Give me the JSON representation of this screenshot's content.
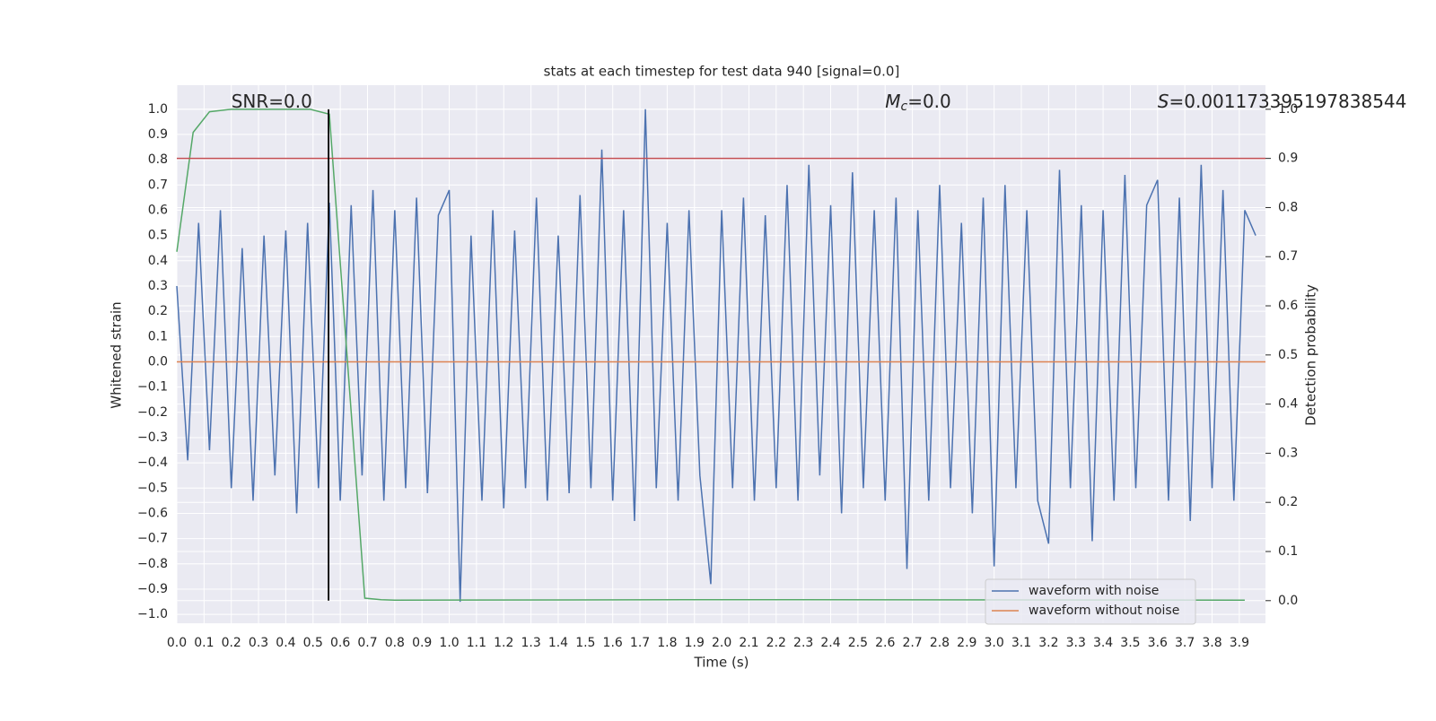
{
  "chart_data": {
    "type": "line",
    "title": "stats at each timestep for test data 940 [signal=0.0]",
    "xlabel": "Time (s)",
    "ylabel": "Whitened strain",
    "y2label": "Detection probability",
    "xlim": [
      0,
      3.996
    ],
    "ylim": [
      -1.035,
      1.095
    ],
    "y2lim": [
      -0.046,
      1.049
    ],
    "grid": true,
    "legend": "lower right",
    "xticks": [
      {
        "value": 0,
        "label": "0.0"
      },
      {
        "value": 0.1,
        "label": "0.1"
      },
      {
        "value": 0.2,
        "label": "0.2"
      },
      {
        "value": 0.3,
        "label": "0.3"
      },
      {
        "value": 0.4,
        "label": "0.4"
      },
      {
        "value": 0.5,
        "label": "0.5"
      },
      {
        "value": 0.6,
        "label": "0.6"
      },
      {
        "value": 0.7,
        "label": "0.7"
      },
      {
        "value": 0.8,
        "label": "0.8"
      },
      {
        "value": 0.9,
        "label": "0.9"
      },
      {
        "value": 1,
        "label": "1.0"
      },
      {
        "value": 1.1,
        "label": "1.1"
      },
      {
        "value": 1.2,
        "label": "1.2"
      },
      {
        "value": 1.3,
        "label": "1.3"
      },
      {
        "value": 1.4,
        "label": "1.4"
      },
      {
        "value": 1.5,
        "label": "1.5"
      },
      {
        "value": 1.6,
        "label": "1.6"
      },
      {
        "value": 1.7,
        "label": "1.7"
      },
      {
        "value": 1.8,
        "label": "1.8"
      },
      {
        "value": 1.9,
        "label": "1.9"
      },
      {
        "value": 2,
        "label": "2.0"
      },
      {
        "value": 2.1,
        "label": "2.1"
      },
      {
        "value": 2.2,
        "label": "2.2"
      },
      {
        "value": 2.3,
        "label": "2.3"
      },
      {
        "value": 2.4,
        "label": "2.4"
      },
      {
        "value": 2.5,
        "label": "2.5"
      },
      {
        "value": 2.6,
        "label": "2.6"
      },
      {
        "value": 2.7,
        "label": "2.7"
      },
      {
        "value": 2.8,
        "label": "2.8"
      },
      {
        "value": 2.9,
        "label": "2.9"
      },
      {
        "value": 3,
        "label": "3.0"
      },
      {
        "value": 3.1,
        "label": "3.1"
      },
      {
        "value": 3.2,
        "label": "3.2"
      },
      {
        "value": 3.3,
        "label": "3.3"
      },
      {
        "value": 3.4,
        "label": "3.4"
      },
      {
        "value": 3.5,
        "label": "3.5"
      },
      {
        "value": 3.6,
        "label": "3.6"
      },
      {
        "value": 3.7,
        "label": "3.7"
      },
      {
        "value": 3.8,
        "label": "3.8"
      },
      {
        "value": 3.9,
        "label": "3.9"
      }
    ],
    "yticks": [
      {
        "value": -1,
        "label": "−1.0"
      },
      {
        "value": -0.9,
        "label": "−0.9"
      },
      {
        "value": -0.8,
        "label": "−0.8"
      },
      {
        "value": -0.7,
        "label": "−0.7"
      },
      {
        "value": -0.6,
        "label": "−0.6"
      },
      {
        "value": -0.5,
        "label": "−0.5"
      },
      {
        "value": -0.4,
        "label": "−0.4"
      },
      {
        "value": -0.3,
        "label": "−0.3"
      },
      {
        "value": -0.2,
        "label": "−0.2"
      },
      {
        "value": -0.1,
        "label": "−0.1"
      },
      {
        "value": 0,
        "label": "0.0"
      },
      {
        "value": 0.1,
        "label": "0.1"
      },
      {
        "value": 0.2,
        "label": "0.2"
      },
      {
        "value": 0.3,
        "label": "0.3"
      },
      {
        "value": 0.4,
        "label": "0.4"
      },
      {
        "value": 0.5,
        "label": "0.5"
      },
      {
        "value": 0.6,
        "label": "0.6"
      },
      {
        "value": 0.7,
        "label": "0.7"
      },
      {
        "value": 0.8,
        "label": "0.8"
      },
      {
        "value": 0.9,
        "label": "0.9"
      },
      {
        "value": 1,
        "label": "1.0"
      }
    ],
    "y2ticks": [
      {
        "value": 0,
        "label": "0.0"
      },
      {
        "value": 0.1,
        "label": "0.1"
      },
      {
        "value": 0.2,
        "label": "0.2"
      },
      {
        "value": 0.3,
        "label": "0.3"
      },
      {
        "value": 0.4,
        "label": "0.4"
      },
      {
        "value": 0.5,
        "label": "0.5"
      },
      {
        "value": 0.6,
        "label": "0.6"
      },
      {
        "value": 0.7,
        "label": "0.7"
      },
      {
        "value": 0.8,
        "label": "0.8"
      },
      {
        "value": 0.9,
        "label": "0.9"
      },
      {
        "value": 1,
        "label": "1.0"
      }
    ],
    "series": [
      {
        "name": "waveform with noise",
        "color": "#4c72b0",
        "x": [
          0,
          0.04,
          0.08,
          0.12,
          0.16,
          0.2,
          0.24,
          0.28,
          0.32,
          0.36,
          0.4,
          0.44,
          0.48,
          0.52,
          0.56,
          0.6,
          0.64,
          0.68,
          0.72,
          0.76,
          0.8,
          0.84,
          0.88,
          0.92,
          0.96,
          1,
          1.04,
          1.08,
          1.12,
          1.16,
          1.2,
          1.24,
          1.28,
          1.32,
          1.36,
          1.4,
          1.44,
          1.48,
          1.52,
          1.56,
          1.6,
          1.64,
          1.68,
          1.72,
          1.76,
          1.8,
          1.84,
          1.88,
          1.92,
          1.96,
          2,
          2.04,
          2.08,
          2.12,
          2.16,
          2.2,
          2.24,
          2.28,
          2.32,
          2.36,
          2.4,
          2.44,
          2.48,
          2.52,
          2.56,
          2.6,
          2.64,
          2.68,
          2.72,
          2.76,
          2.8,
          2.84,
          2.88,
          2.92,
          2.96,
          3,
          3.04,
          3.08,
          3.12,
          3.16,
          3.2,
          3.24,
          3.28,
          3.32,
          3.36,
          3.4,
          3.44,
          3.48,
          3.52,
          3.56,
          3.6,
          3.64,
          3.68,
          3.72,
          3.76,
          3.8,
          3.84,
          3.88,
          3.92,
          3.96
        ],
        "values": [
          0.3,
          -0.39,
          0.55,
          -0.35,
          0.6,
          -0.5,
          0.45,
          -0.55,
          0.5,
          -0.45,
          0.52,
          -0.6,
          0.55,
          -0.5,
          0.63,
          -0.55,
          0.62,
          -0.45,
          0.68,
          -0.55,
          0.6,
          -0.5,
          0.65,
          -0.52,
          0.58,
          0.68,
          -0.95,
          0.5,
          -0.55,
          0.6,
          -0.58,
          0.52,
          -0.5,
          0.65,
          -0.55,
          0.5,
          -0.52,
          0.66,
          -0.5,
          0.84,
          -0.55,
          0.6,
          -0.63,
          1.0,
          -0.5,
          0.55,
          -0.55,
          0.6,
          -0.45,
          -0.88,
          0.6,
          -0.5,
          0.65,
          -0.55,
          0.58,
          -0.5,
          0.7,
          -0.55,
          0.78,
          -0.45,
          0.62,
          -0.6,
          0.75,
          -0.5,
          0.6,
          -0.55,
          0.65,
          -0.82,
          0.6,
          -0.55,
          0.7,
          -0.5,
          0.55,
          -0.6,
          0.65,
          -0.81,
          0.7,
          -0.5,
          0.6,
          -0.55,
          -0.72,
          0.76,
          -0.5,
          0.62,
          -0.71,
          0.6,
          -0.55,
          0.74,
          -0.5,
          0.62,
          0.72,
          -0.55,
          0.65,
          -0.63,
          0.78,
          -0.5,
          0.68,
          -0.55,
          0.6,
          0.5
        ]
      },
      {
        "name": "waveform without noise",
        "color": "#dd8452",
        "x": [
          0,
          3.996
        ],
        "values": [
          0,
          0
        ]
      }
    ],
    "probability": {
      "color": "#55a868",
      "axis": "y2",
      "x": [
        0,
        0.06,
        0.12,
        0.2,
        0.49,
        0.56,
        0.69,
        0.75,
        0.8,
        2.0,
        3.92
      ],
      "values": [
        0.71,
        0.953,
        0.995,
        1.0,
        1.0,
        0.99,
        0.005,
        0.002,
        0.001,
        0.002,
        0.001
      ]
    },
    "threshold": {
      "value": 0.9,
      "color": "#c44e52",
      "axis": "y2"
    },
    "vline": {
      "x": 0.557,
      "ymin": 0,
      "ymax": 1,
      "color": "#000000",
      "axis": "y2"
    },
    "annotations": [
      {
        "label": "SNR",
        "text": "=0.0",
        "x": 0.2,
        "italic": false
      },
      {
        "label": "M",
        "sub": "c",
        "text": "=0.0",
        "x": 2.6,
        "italic": true
      },
      {
        "label": "S",
        "text": "=0.001173395197838544",
        "x": 3.6,
        "italic": true
      }
    ]
  }
}
